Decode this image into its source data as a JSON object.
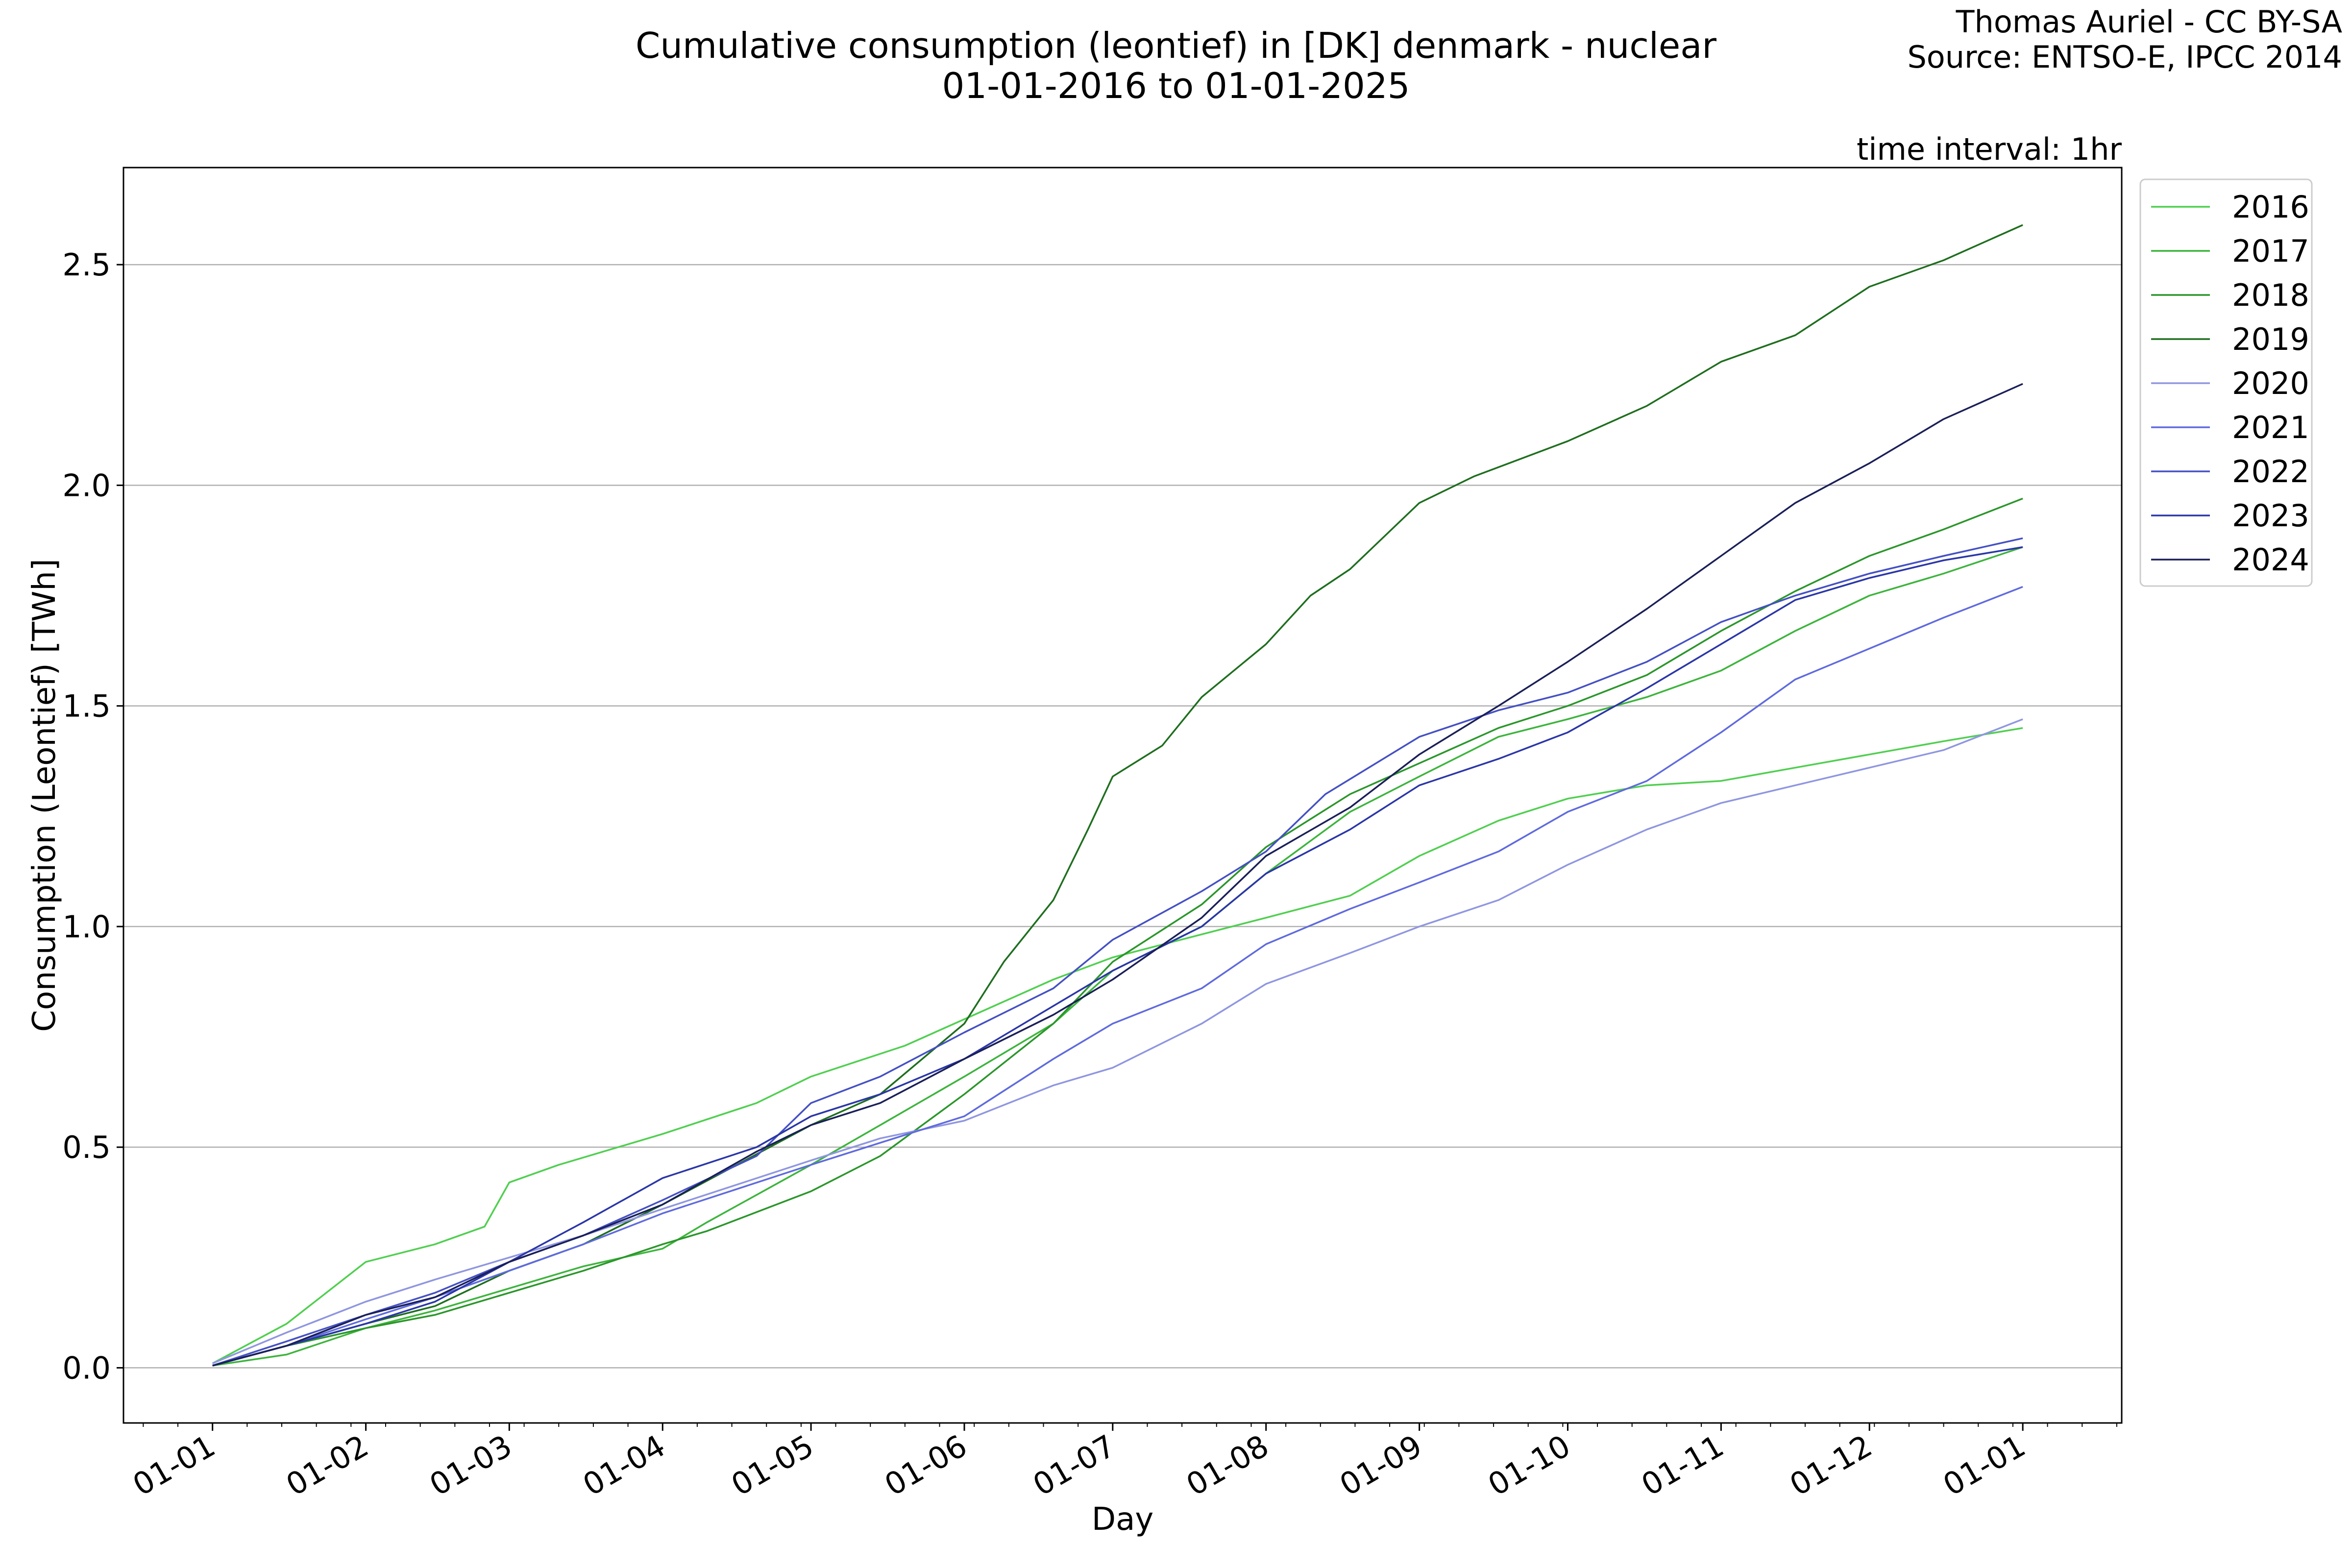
{
  "header": {
    "title_line1": "Cumulative consumption (leontief) in [DK] denmark - nuclear",
    "title_line2": "01-01-2016 to 01-01-2025",
    "credit_line1": "Thomas Auriel - CC BY-SA",
    "credit_line2": "Source: ENTSO-E, IPCC 2014",
    "interval": "time interval: 1hr"
  },
  "chart_data": {
    "type": "line",
    "xlabel": "Day",
    "ylabel": "Consumption (Leontief) [TWh]",
    "x_ticks": [
      "01-01",
      "01-02",
      "01-03",
      "01-04",
      "01-05",
      "01-06",
      "01-07",
      "01-08",
      "01-09",
      "01-10",
      "01-11",
      "01-12",
      "01-01"
    ],
    "x_tick_days": [
      0,
      31,
      60,
      91,
      121,
      152,
      182,
      213,
      244,
      274,
      305,
      335,
      366
    ],
    "xlim": [
      -18,
      386
    ],
    "ylim": [
      -0.125,
      2.72
    ],
    "y_ticks": [
      0.0,
      0.5,
      1.0,
      1.5,
      2.0,
      2.5
    ],
    "y_tick_labels": [
      "0.0",
      "0.5",
      "1.0",
      "1.5",
      "2.0",
      "2.5"
    ],
    "grid": "horizontal",
    "legend_position": "outside-right",
    "series": [
      {
        "name": "2016",
        "color": "#4fcf4f",
        "points": [
          [
            0,
            0.01
          ],
          [
            15,
            0.1
          ],
          [
            31,
            0.24
          ],
          [
            45,
            0.28
          ],
          [
            55,
            0.32
          ],
          [
            60,
            0.42
          ],
          [
            70,
            0.46
          ],
          [
            91,
            0.53
          ],
          [
            110,
            0.6
          ],
          [
            121,
            0.66
          ],
          [
            140,
            0.73
          ],
          [
            152,
            0.79
          ],
          [
            170,
            0.88
          ],
          [
            182,
            0.93
          ],
          [
            213,
            1.02
          ],
          [
            230,
            1.07
          ],
          [
            244,
            1.16
          ],
          [
            260,
            1.24
          ],
          [
            274,
            1.29
          ],
          [
            290,
            1.32
          ],
          [
            305,
            1.33
          ],
          [
            320,
            1.36
          ],
          [
            335,
            1.39
          ],
          [
            350,
            1.42
          ],
          [
            366,
            1.45
          ]
        ]
      },
      {
        "name": "2017",
        "color": "#3cb43c",
        "points": [
          [
            0,
            0.005
          ],
          [
            15,
            0.03
          ],
          [
            31,
            0.09
          ],
          [
            45,
            0.13
          ],
          [
            60,
            0.18
          ],
          [
            75,
            0.23
          ],
          [
            91,
            0.27
          ],
          [
            100,
            0.33
          ],
          [
            121,
            0.46
          ],
          [
            135,
            0.55
          ],
          [
            152,
            0.66
          ],
          [
            170,
            0.78
          ],
          [
            182,
            0.9
          ],
          [
            200,
            1.0
          ],
          [
            213,
            1.12
          ],
          [
            230,
            1.26
          ],
          [
            244,
            1.34
          ],
          [
            260,
            1.43
          ],
          [
            274,
            1.47
          ],
          [
            290,
            1.52
          ],
          [
            305,
            1.58
          ],
          [
            320,
            1.67
          ],
          [
            335,
            1.75
          ],
          [
            350,
            1.8
          ],
          [
            366,
            1.86
          ]
        ]
      },
      {
        "name": "2018",
        "color": "#2a962a",
        "points": [
          [
            0,
            0.005
          ],
          [
            15,
            0.05
          ],
          [
            31,
            0.09
          ],
          [
            45,
            0.12
          ],
          [
            60,
            0.17
          ],
          [
            75,
            0.22
          ],
          [
            91,
            0.28
          ],
          [
            100,
            0.31
          ],
          [
            121,
            0.4
          ],
          [
            135,
            0.48
          ],
          [
            152,
            0.62
          ],
          [
            170,
            0.78
          ],
          [
            182,
            0.92
          ],
          [
            200,
            1.05
          ],
          [
            213,
            1.18
          ],
          [
            230,
            1.3
          ],
          [
            244,
            1.37
          ],
          [
            260,
            1.45
          ],
          [
            274,
            1.5
          ],
          [
            290,
            1.57
          ],
          [
            305,
            1.67
          ],
          [
            320,
            1.76
          ],
          [
            335,
            1.84
          ],
          [
            350,
            1.9
          ],
          [
            366,
            1.97
          ]
        ]
      },
      {
        "name": "2019",
        "color": "#1e6e1e",
        "points": [
          [
            0,
            0.005
          ],
          [
            15,
            0.05
          ],
          [
            31,
            0.1
          ],
          [
            45,
            0.14
          ],
          [
            60,
            0.22
          ],
          [
            75,
            0.28
          ],
          [
            91,
            0.37
          ],
          [
            121,
            0.55
          ],
          [
            135,
            0.62
          ],
          [
            152,
            0.78
          ],
          [
            160,
            0.92
          ],
          [
            170,
            1.06
          ],
          [
            177,
            1.22
          ],
          [
            182,
            1.34
          ],
          [
            192,
            1.41
          ],
          [
            200,
            1.52
          ],
          [
            213,
            1.64
          ],
          [
            222,
            1.75
          ],
          [
            230,
            1.81
          ],
          [
            244,
            1.96
          ],
          [
            255,
            2.02
          ],
          [
            274,
            2.1
          ],
          [
            290,
            2.18
          ],
          [
            305,
            2.28
          ],
          [
            320,
            2.34
          ],
          [
            335,
            2.45
          ],
          [
            350,
            2.51
          ],
          [
            366,
            2.59
          ]
        ]
      },
      {
        "name": "2020",
        "color": "#8f96e0",
        "points": [
          [
            0,
            0.01
          ],
          [
            15,
            0.08
          ],
          [
            31,
            0.15
          ],
          [
            45,
            0.2
          ],
          [
            60,
            0.25
          ],
          [
            75,
            0.3
          ],
          [
            91,
            0.36
          ],
          [
            121,
            0.47
          ],
          [
            135,
            0.52
          ],
          [
            152,
            0.56
          ],
          [
            170,
            0.64
          ],
          [
            182,
            0.68
          ],
          [
            200,
            0.78
          ],
          [
            213,
            0.87
          ],
          [
            230,
            0.94
          ],
          [
            244,
            1.0
          ],
          [
            260,
            1.06
          ],
          [
            274,
            1.14
          ],
          [
            290,
            1.22
          ],
          [
            305,
            1.28
          ],
          [
            320,
            1.32
          ],
          [
            335,
            1.36
          ],
          [
            350,
            1.4
          ],
          [
            366,
            1.47
          ]
        ]
      },
      {
        "name": "2021",
        "color": "#5f6ade",
        "points": [
          [
            0,
            0.005
          ],
          [
            15,
            0.05
          ],
          [
            31,
            0.11
          ],
          [
            45,
            0.16
          ],
          [
            60,
            0.22
          ],
          [
            75,
            0.28
          ],
          [
            91,
            0.35
          ],
          [
            121,
            0.46
          ],
          [
            135,
            0.51
          ],
          [
            152,
            0.57
          ],
          [
            170,
            0.7
          ],
          [
            182,
            0.78
          ],
          [
            200,
            0.86
          ],
          [
            213,
            0.96
          ],
          [
            230,
            1.04
          ],
          [
            244,
            1.1
          ],
          [
            260,
            1.17
          ],
          [
            274,
            1.26
          ],
          [
            290,
            1.33
          ],
          [
            305,
            1.44
          ],
          [
            320,
            1.56
          ],
          [
            335,
            1.63
          ],
          [
            350,
            1.7
          ],
          [
            366,
            1.77
          ]
        ]
      },
      {
        "name": "2022",
        "color": "#4450c4",
        "points": [
          [
            0,
            0.005
          ],
          [
            15,
            0.06
          ],
          [
            31,
            0.12
          ],
          [
            45,
            0.17
          ],
          [
            60,
            0.24
          ],
          [
            75,
            0.3
          ],
          [
            91,
            0.38
          ],
          [
            110,
            0.48
          ],
          [
            121,
            0.6
          ],
          [
            135,
            0.66
          ],
          [
            152,
            0.76
          ],
          [
            170,
            0.86
          ],
          [
            182,
            0.97
          ],
          [
            200,
            1.08
          ],
          [
            213,
            1.17
          ],
          [
            225,
            1.3
          ],
          [
            244,
            1.43
          ],
          [
            260,
            1.49
          ],
          [
            274,
            1.53
          ],
          [
            290,
            1.6
          ],
          [
            305,
            1.69
          ],
          [
            320,
            1.75
          ],
          [
            335,
            1.8
          ],
          [
            350,
            1.84
          ],
          [
            366,
            1.88
          ]
        ]
      },
      {
        "name": "2023",
        "color": "#2a36a8",
        "points": [
          [
            0,
            0.005
          ],
          [
            15,
            0.05
          ],
          [
            31,
            0.1
          ],
          [
            45,
            0.15
          ],
          [
            60,
            0.24
          ],
          [
            75,
            0.33
          ],
          [
            91,
            0.43
          ],
          [
            110,
            0.5
          ],
          [
            121,
            0.57
          ],
          [
            135,
            0.62
          ],
          [
            152,
            0.7
          ],
          [
            170,
            0.82
          ],
          [
            182,
            0.9
          ],
          [
            200,
            1.0
          ],
          [
            213,
            1.12
          ],
          [
            230,
            1.22
          ],
          [
            244,
            1.32
          ],
          [
            260,
            1.38
          ],
          [
            274,
            1.44
          ],
          [
            290,
            1.54
          ],
          [
            305,
            1.64
          ],
          [
            320,
            1.74
          ],
          [
            335,
            1.79
          ],
          [
            350,
            1.83
          ],
          [
            366,
            1.86
          ]
        ]
      },
      {
        "name": "2024",
        "color": "#1a1f58",
        "points": [
          [
            0,
            0.005
          ],
          [
            15,
            0.05
          ],
          [
            31,
            0.12
          ],
          [
            45,
            0.16
          ],
          [
            60,
            0.24
          ],
          [
            75,
            0.3
          ],
          [
            91,
            0.37
          ],
          [
            110,
            0.49
          ],
          [
            121,
            0.55
          ],
          [
            135,
            0.6
          ],
          [
            152,
            0.7
          ],
          [
            170,
            0.8
          ],
          [
            182,
            0.88
          ],
          [
            200,
            1.02
          ],
          [
            213,
            1.16
          ],
          [
            230,
            1.27
          ],
          [
            244,
            1.39
          ],
          [
            260,
            1.5
          ],
          [
            274,
            1.6
          ],
          [
            290,
            1.72
          ],
          [
            305,
            1.84
          ],
          [
            320,
            1.96
          ],
          [
            335,
            2.05
          ],
          [
            350,
            2.15
          ],
          [
            366,
            2.23
          ]
        ]
      }
    ]
  }
}
